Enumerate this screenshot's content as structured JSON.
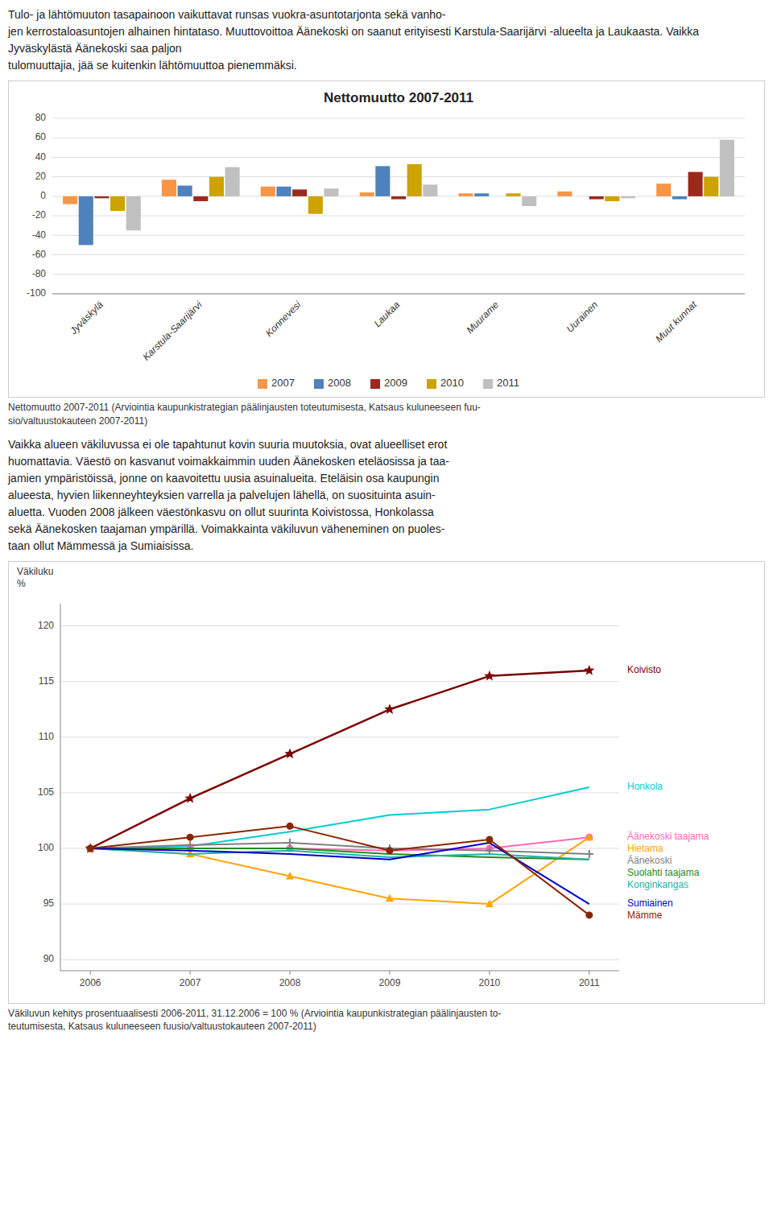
{
  "texts": [
    "Tulo- ja lähtömuuton tasapainoon vaikuttavat runsas vuokra-asuntotarjonta sekä vanho-\njen kerrostaloasuntojen alhainen hintataso. Muuttovoittoa Äänekoski on saanut erityisesti Karstula-Saarijärvi -alueelta ja Laukaasta. Vaikka Jyväskylästä Äänekoski saa paljon\ntulomuuttajia, jää se kuitenkin lähtömuuttoa pienemmäksi.",
    "Nettomuutto 2007-2011 (Arviointia kaupunkistrategian päälinjausten toteutumisesta, Katsaus kuluneeseen fuu-\nsio/valtuustokauteen 2007-2011)",
    "Vaikka alueen väkiluvussa ei ole tapahtunut kovin suuria muutoksia, ovat alueelliset erot\nhuomattavia. Väestö on kasvanut voimakkaimmin uuden Äänekosken eteläosissa ja taa-\njamien ympäristöissä, jonne on kaavoitettu uusia asuinalueita. Eteläisin osa kaupungin\nalueesta, hyvien liikenneyhteyksien varrella ja palvelujen lähellä, on suosituinta asuin-\naluetta. Vuoden 2008 jälkeen väestönkasvu on ollut suurinta Koivistossa, Honkolassa\nsekä Äänekosken taajaman ympärillä. Voimakkainta väkiluvun väheneminen on puoles-\ntaan ollut Mämmessä ja Sumiaisissa.",
    "Väkiluvun kehitys prosentuaalisesti 2006-2011, 31.12.2006 = 100 % (Arviointia kaupunkistrategian päälinjausten to-\nteutumisesta, Katsaus kuluneeseen fuusio/valtuustokauteen 2007-2011)"
  ],
  "chart_data": [
    {
      "type": "bar",
      "title": "Nettomuutto 2007-2011",
      "categories": [
        "Jyväskylä",
        "Karstula-Saarijärvi",
        "Konnevesi",
        "Laukaa",
        "Muurame",
        "Uurainen",
        "Muut kunnat"
      ],
      "series": [
        {
          "name": "2007",
          "color": "#F79646",
          "values": [
            -8,
            17,
            10,
            4,
            3,
            5,
            13
          ]
        },
        {
          "name": "2008",
          "color": "#4F81BD",
          "values": [
            -50,
            11,
            10,
            31,
            3,
            0,
            -3
          ]
        },
        {
          "name": "2009",
          "color": "#9C2A1C",
          "values": [
            -2,
            -5,
            7,
            -3,
            0,
            -3,
            25
          ]
        },
        {
          "name": "2010",
          "color": "#CCA300",
          "values": [
            -15,
            20,
            -18,
            33,
            3,
            -5,
            20
          ]
        },
        {
          "name": "2011",
          "color": "#C0C0C0",
          "values": [
            -35,
            30,
            8,
            12,
            -10,
            -2,
            58
          ]
        }
      ],
      "ylim": [
        -100,
        80
      ],
      "yticks": [
        -100,
        -80,
        -60,
        -40,
        -20,
        0,
        20,
        40,
        60,
        80
      ],
      "grid": true,
      "legend": "bottom"
    },
    {
      "type": "line",
      "ylabel": "Väkiluku\n%",
      "x": [
        2006,
        2007,
        2008,
        2009,
        2010,
        2011
      ],
      "series": [
        {
          "name": "Koivisto",
          "color": "#7B0000",
          "marker": "star",
          "values": [
            100.0,
            104.5,
            108.5,
            112.5,
            115.5,
            116.0
          ]
        },
        {
          "name": "Honkola",
          "color": "#00CED1",
          "marker": "none",
          "values": [
            100.0,
            100.2,
            101.5,
            103.0,
            103.5,
            105.5
          ]
        },
        {
          "name": "Äänekoski taajama",
          "color": "#FF69B4",
          "marker": "circle",
          "values": [
            100.0,
            100.0,
            100.0,
            99.8,
            100.0,
            101.0
          ]
        },
        {
          "name": "Hietama",
          "color": "#FFA500",
          "marker": "triangle",
          "values": [
            100.0,
            99.5,
            97.5,
            95.5,
            95.0,
            101.0
          ]
        },
        {
          "name": "Äänekoski",
          "color": "#808080",
          "marker": "plus",
          "values": [
            100.0,
            100.3,
            100.5,
            100.0,
            99.8,
            99.5
          ]
        },
        {
          "name": "Suolahti taajama",
          "color": "#228B22",
          "marker": "none",
          "values": [
            100.0,
            100.0,
            100.0,
            99.5,
            99.2,
            99.0
          ]
        },
        {
          "name": "Konginkangas",
          "color": "#20B2AA",
          "marker": "none",
          "values": [
            100.0,
            99.5,
            99.8,
            99.2,
            99.5,
            99.0
          ]
        },
        {
          "name": "Sumiainen",
          "color": "#0000CD",
          "marker": "none",
          "values": [
            100.0,
            99.8,
            99.5,
            99.0,
            100.5,
            95.0
          ]
        },
        {
          "name": "Mämme",
          "color": "#8B2500",
          "marker": "circle",
          "values": [
            100.0,
            101.0,
            102.0,
            99.8,
            100.8,
            94.0
          ]
        }
      ],
      "xlim": [
        2005.7,
        2011.3
      ],
      "xticks": [
        2006,
        2007,
        2008,
        2009,
        2010,
        2011
      ],
      "ylim": [
        89.0,
        122.0
      ],
      "yticks": [
        90,
        95,
        100,
        105,
        110,
        115,
        120
      ],
      "grid": true
    }
  ]
}
